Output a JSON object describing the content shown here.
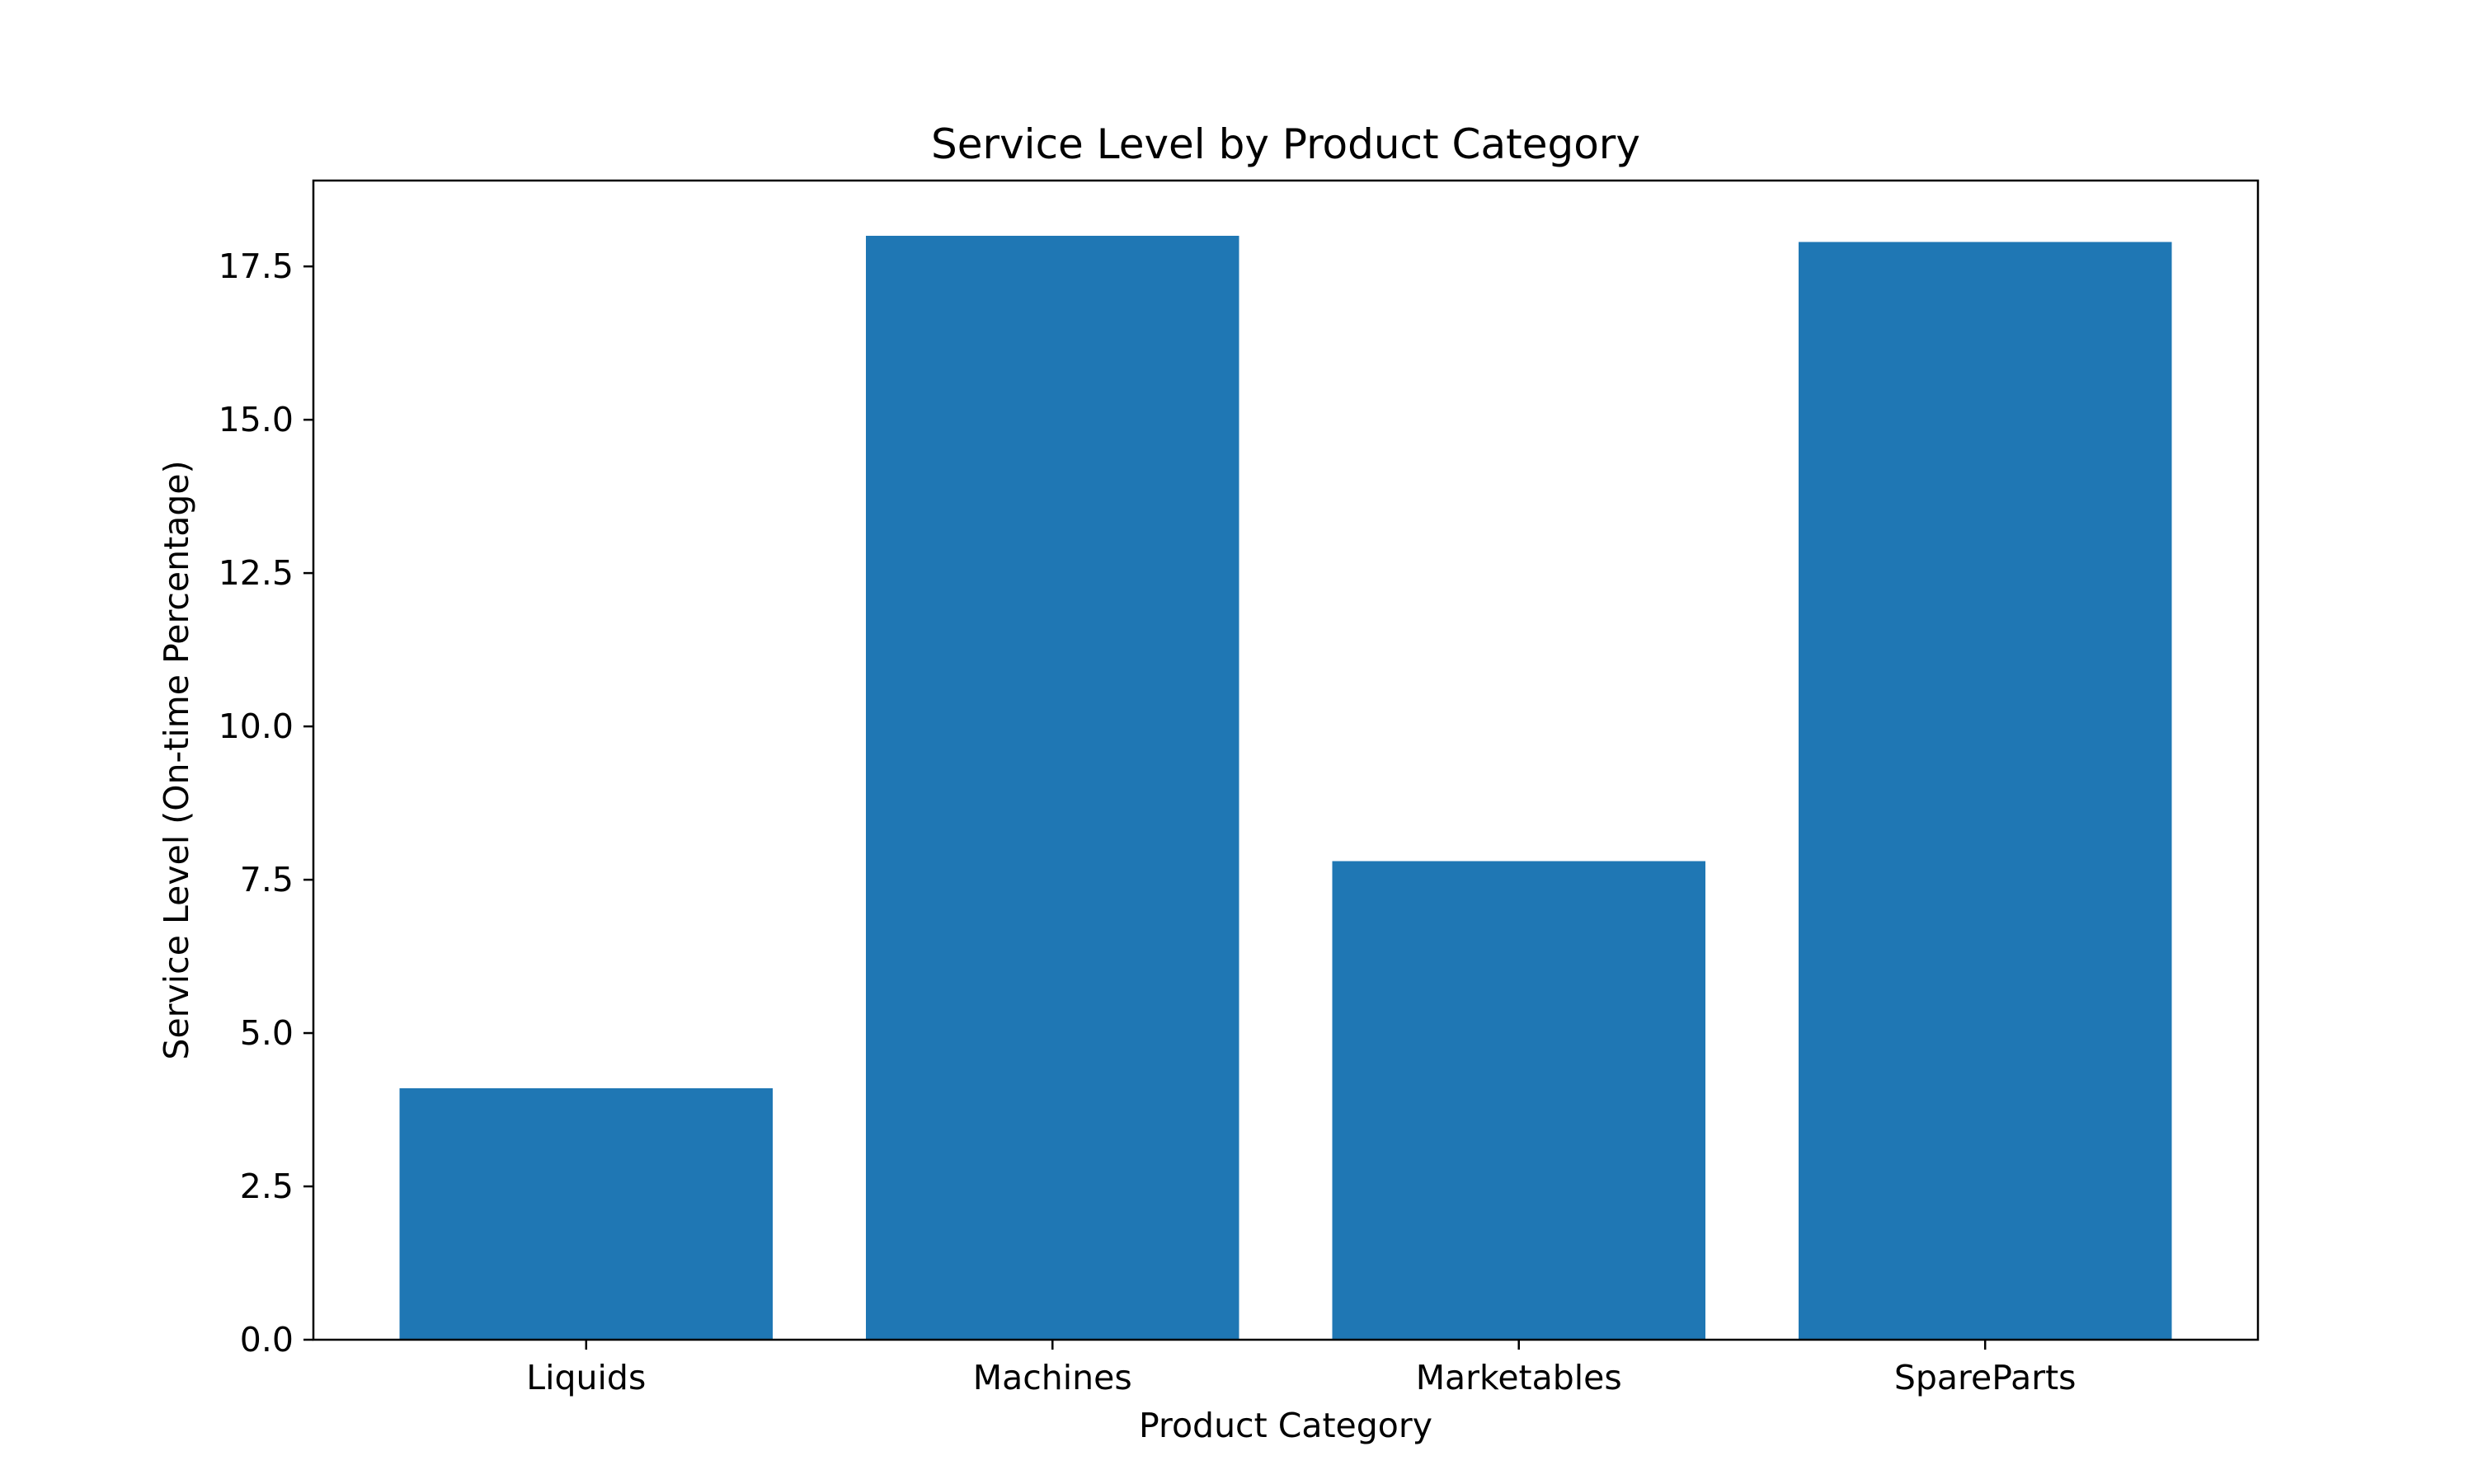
{
  "chart_data": {
    "type": "bar",
    "title": "Service Level by Product Category",
    "xlabel": "Product Category",
    "ylabel": "Service Level (On-time Percentage)",
    "categories": [
      "Liquids",
      "Machines",
      "Marketables",
      "SpareParts"
    ],
    "values": [
      4.1,
      18.0,
      7.8,
      17.9
    ],
    "ylim": [
      0,
      18.9
    ],
    "yticks": [
      0.0,
      2.5,
      5.0,
      7.5,
      10.0,
      12.5,
      15.0,
      17.5
    ],
    "ytick_labels": [
      "0.0",
      "2.5",
      "5.0",
      "7.5",
      "10.0",
      "12.5",
      "15.0",
      "17.5"
    ],
    "grid": false,
    "legend": "none",
    "bar_color": "#1f77b4"
  }
}
